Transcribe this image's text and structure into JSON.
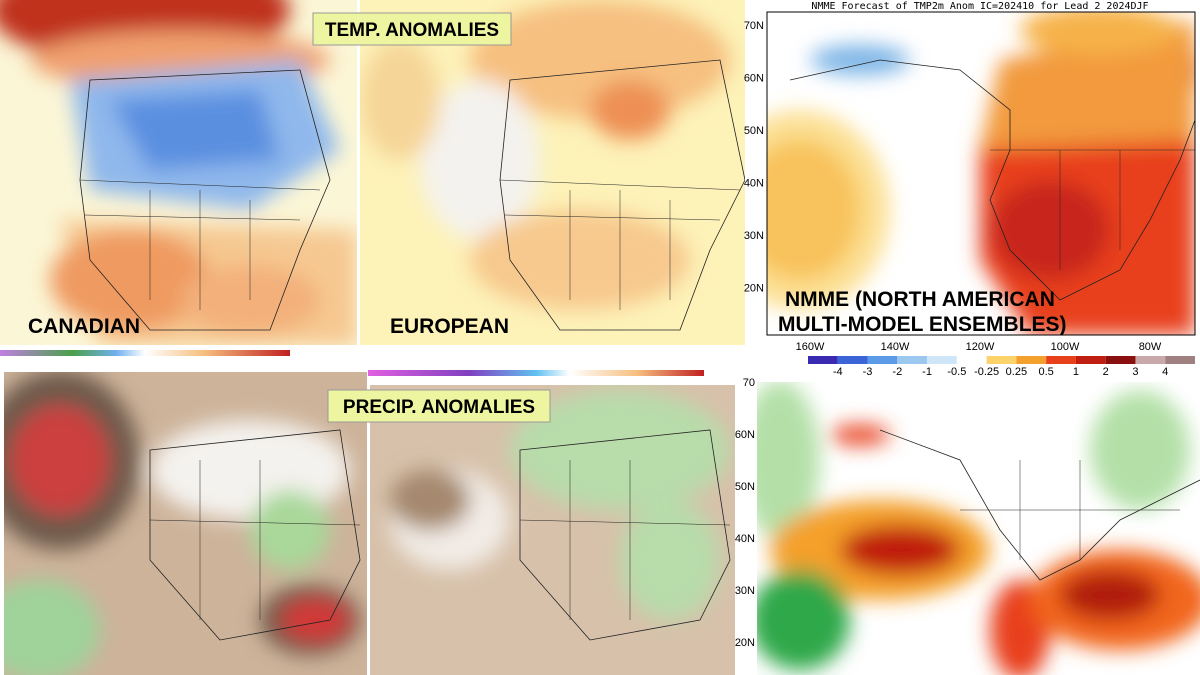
{
  "header": {
    "temp_title": "TEMP. ANOMALIES",
    "precip_title": "PRECIP. ANOMALIES"
  },
  "panels": {
    "canadian": {
      "label": "CANADIAN"
    },
    "european": {
      "label": "EUROPEAN"
    },
    "nmme": {
      "label_line1": "NMME (NORTH AMERICAN",
      "label_line2": "MULTI-MODEL ENSEMBLES)",
      "title": "NMME Forecast of TMP2m Anom IC=202410 for Lead 2 2024DJF",
      "lat_labels": [
        "70N",
        "60N",
        "50N",
        "40N",
        "30N",
        "20N"
      ],
      "lon_labels": [
        "160W",
        "140W",
        "120W",
        "100W",
        "80W"
      ],
      "colorbar_labels": [
        "-4",
        "-3",
        "-2",
        "-1",
        "-0.5",
        "-0.25",
        "0.25",
        "0.5",
        "1",
        "2",
        "3",
        "4"
      ]
    },
    "nmme_precip": {
      "lat_labels": [
        "70",
        "60N",
        "50N",
        "40N",
        "30N",
        "20N"
      ]
    }
  }
}
